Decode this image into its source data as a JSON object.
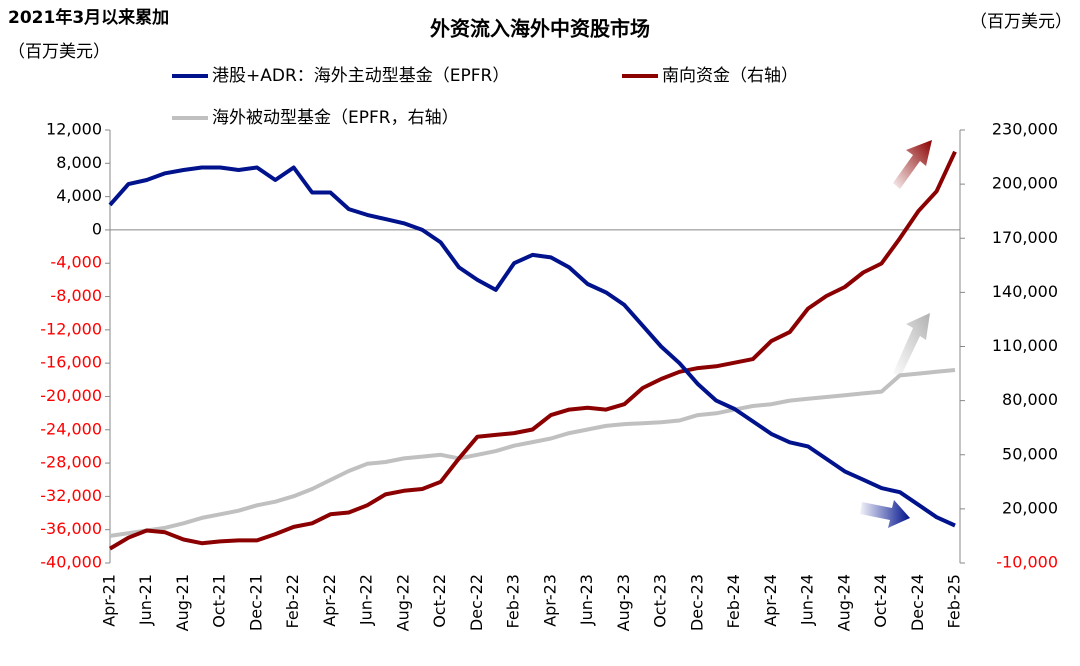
{
  "chart_data": {
    "type": "line",
    "title": "外资流入海外中资股市场",
    "left_unit_lines": [
      "2021年3月以来累加",
      "（百万美元）"
    ],
    "right_unit": "（百万美元）",
    "categories": [
      "Apr-21",
      null,
      "Jun-21",
      null,
      "Aug-21",
      null,
      "Oct-21",
      null,
      "Dec-21",
      null,
      "Feb-22",
      null,
      "Apr-22",
      null,
      "Jun-22",
      null,
      "Aug-22",
      null,
      "Oct-22",
      null,
      "Dec-22",
      null,
      "Feb-23",
      null,
      "Apr-23",
      null,
      "Jun-23",
      null,
      "Aug-23",
      null,
      "Oct-23",
      null,
      "Dec-23",
      null,
      "Feb-24",
      null,
      "Apr-24",
      null,
      "Jun-24",
      null,
      "Aug-24",
      null,
      "Oct-24",
      null,
      "Dec-24",
      null,
      "Feb-25"
    ],
    "series": [
      {
        "name": "港股+ADR：海外主动型基金（EPFR）",
        "color": "#00128c",
        "values": [
          3000,
          5500,
          6000,
          6800,
          7200,
          7500,
          7500,
          7200,
          7500,
          6000,
          7500,
          4500,
          4500,
          2500,
          1800,
          1300,
          800,
          0,
          -1500,
          -4500,
          -6000,
          -7200,
          -4000,
          -3000,
          -3300,
          -4500,
          -6500,
          -7500,
          -9000,
          -11500,
          -14000,
          -16000,
          -18500,
          -20500,
          -21500,
          -23000,
          -24500,
          -25500,
          -26000,
          -27500,
          -29000,
          -30000,
          -31000,
          -31500,
          -33000,
          -34500,
          -35500
        ]
      },
      {
        "name": "南向资金（右轴）",
        "color": "#8b0000",
        "axis": "y2",
        "values": [
          -2000,
          4000,
          8000,
          7000,
          3000,
          1000,
          2000,
          2500,
          2500,
          6000,
          10000,
          12000,
          17000,
          18000,
          22000,
          28000,
          30000,
          31000,
          35000,
          48000,
          60000,
          61000,
          62000,
          64000,
          72000,
          75000,
          76000,
          75000,
          78000,
          87000,
          92000,
          96000,
          98000,
          99000,
          101000,
          103000,
          113000,
          118000,
          131000,
          138000,
          143000,
          151000,
          156000,
          170000,
          185000,
          196000,
          218000
        ]
      },
      {
        "name": "海外被动型基金（EPFR，右轴）",
        "color": "#c0c0c0",
        "axis": "y2",
        "values": [
          5000,
          6500,
          8000,
          9500,
          12000,
          15000,
          17000,
          19000,
          22000,
          24000,
          27000,
          31000,
          36000,
          41000,
          45000,
          46000,
          48000,
          49000,
          50000,
          48000,
          50000,
          52000,
          55000,
          57000,
          59000,
          62000,
          64000,
          66000,
          67000,
          67500,
          68000,
          69000,
          72000,
          73000,
          75000,
          77000,
          78000,
          80000,
          81000,
          82000,
          83000,
          84000,
          85000,
          94000,
          95000,
          96000,
          97000
        ]
      }
    ],
    "ylim": [
      -40000,
      12000
    ],
    "yticks": [
      {
        "value": -40000,
        "label": "-40,000"
      },
      {
        "value": -36000,
        "label": "-36,000"
      },
      {
        "value": -32000,
        "label": "-32,000"
      },
      {
        "value": -28000,
        "label": "-28,000"
      },
      {
        "value": -24000,
        "label": "-24,000"
      },
      {
        "value": -20000,
        "label": "-20,000"
      },
      {
        "value": -16000,
        "label": "-16,000"
      },
      {
        "value": -12000,
        "label": "-12,000"
      },
      {
        "value": -8000,
        "label": "-8,000"
      },
      {
        "value": -4000,
        "label": "-4,000"
      },
      0,
      {
        "value": 4000,
        "label": "4,000"
      },
      {
        "value": 8000,
        "label": "8,000"
      },
      {
        "value": 12000,
        "label": "12,000"
      }
    ],
    "y2lim": [
      -10000,
      230000
    ],
    "y2ticks": [
      {
        "value": -10000,
        "label": "-10,000"
      },
      {
        "value": 20000,
        "label": "20,000"
      },
      {
        "value": 50000,
        "label": "50,000"
      },
      {
        "value": 80000,
        "label": "80,000"
      },
      {
        "value": 110000,
        "label": "110,000"
      },
      {
        "value": 140000,
        "label": "140,000"
      },
      {
        "value": 170000,
        "label": "170,000"
      },
      {
        "value": 200000,
        "label": "200,000"
      },
      {
        "value": 230000,
        "label": "230,000"
      }
    ],
    "negative_label_color": "#ff0000",
    "grid": false
  }
}
